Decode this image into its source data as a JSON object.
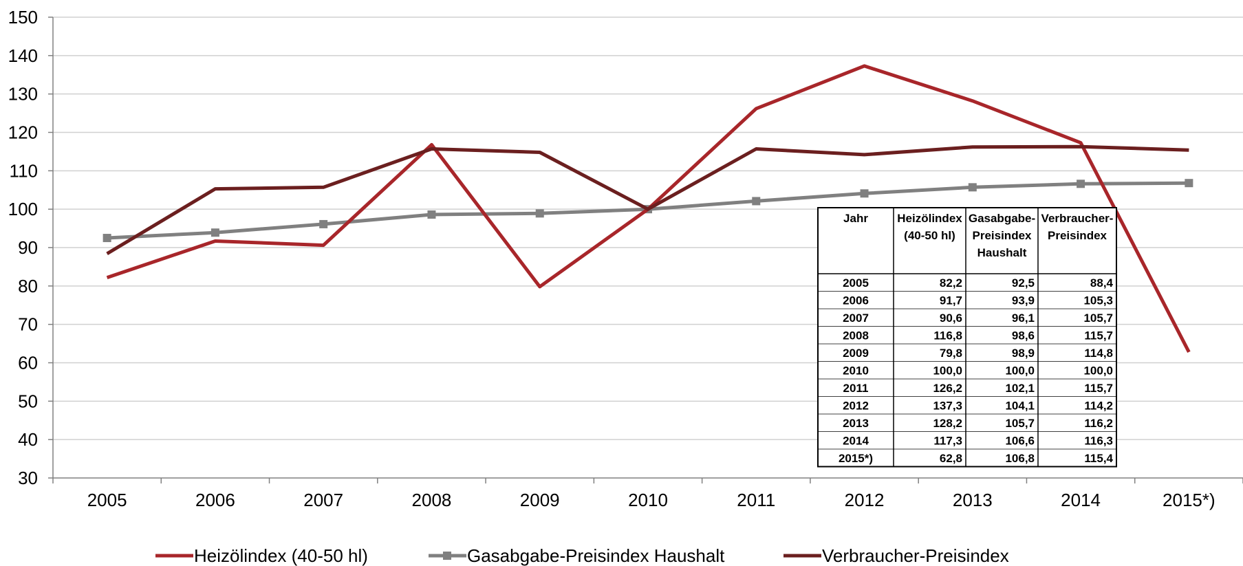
{
  "chart_data": {
    "type": "line",
    "categories": [
      "2005",
      "2006",
      "2007",
      "2008",
      "2009",
      "2010",
      "2011",
      "2012",
      "2013",
      "2014",
      "2015*)"
    ],
    "ylim": [
      30,
      150
    ],
    "yticks": [
      30,
      40,
      50,
      60,
      70,
      80,
      90,
      100,
      110,
      120,
      130,
      140,
      150
    ],
    "grid": true,
    "legend_position": "bottom",
    "series": [
      {
        "name": "Heizölindex (40-50 hl)",
        "color": "#A8262A",
        "marker": "none",
        "values": [
          82.2,
          91.7,
          90.6,
          116.8,
          79.8,
          100.0,
          126.2,
          137.3,
          128.2,
          117.3,
          62.8
        ]
      },
      {
        "name": "Gasabgabe-Preisindex Haushalt",
        "color": "#808080",
        "marker": "square",
        "values": [
          92.5,
          93.9,
          96.1,
          98.6,
          98.9,
          100.0,
          102.1,
          104.1,
          105.7,
          106.6,
          106.8
        ]
      },
      {
        "name": "Verbraucher-Preisindex",
        "color": "#6B1F1F",
        "marker": "none",
        "values": [
          88.4,
          105.3,
          105.7,
          115.7,
          114.8,
          100.0,
          115.7,
          114.2,
          116.2,
          116.3,
          115.4
        ]
      }
    ],
    "table": {
      "headers": [
        [
          "Jahr"
        ],
        [
          "Heizölindex",
          "(40-50 hl)"
        ],
        [
          "Gasabgabe-",
          "Preisindex",
          "Haushalt"
        ],
        [
          "Verbraucher-",
          "Preisindex"
        ]
      ],
      "rows": [
        [
          "2005",
          "82,2",
          "92,5",
          "88,4"
        ],
        [
          "2006",
          "91,7",
          "93,9",
          "105,3"
        ],
        [
          "2007",
          "90,6",
          "96,1",
          "105,7"
        ],
        [
          "2008",
          "116,8",
          "98,6",
          "115,7"
        ],
        [
          "2009",
          "79,8",
          "98,9",
          "114,8"
        ],
        [
          "2010",
          "100,0",
          "100,0",
          "100,0"
        ],
        [
          "2011",
          "126,2",
          "102,1",
          "115,7"
        ],
        [
          "2012",
          "137,3",
          "104,1",
          "114,2"
        ],
        [
          "2013",
          "128,2",
          "105,7",
          "116,2"
        ],
        [
          "2014",
          "117,3",
          "106,6",
          "116,3"
        ],
        [
          "2015*)",
          "62,8",
          "106,8",
          "115,4"
        ]
      ]
    }
  }
}
